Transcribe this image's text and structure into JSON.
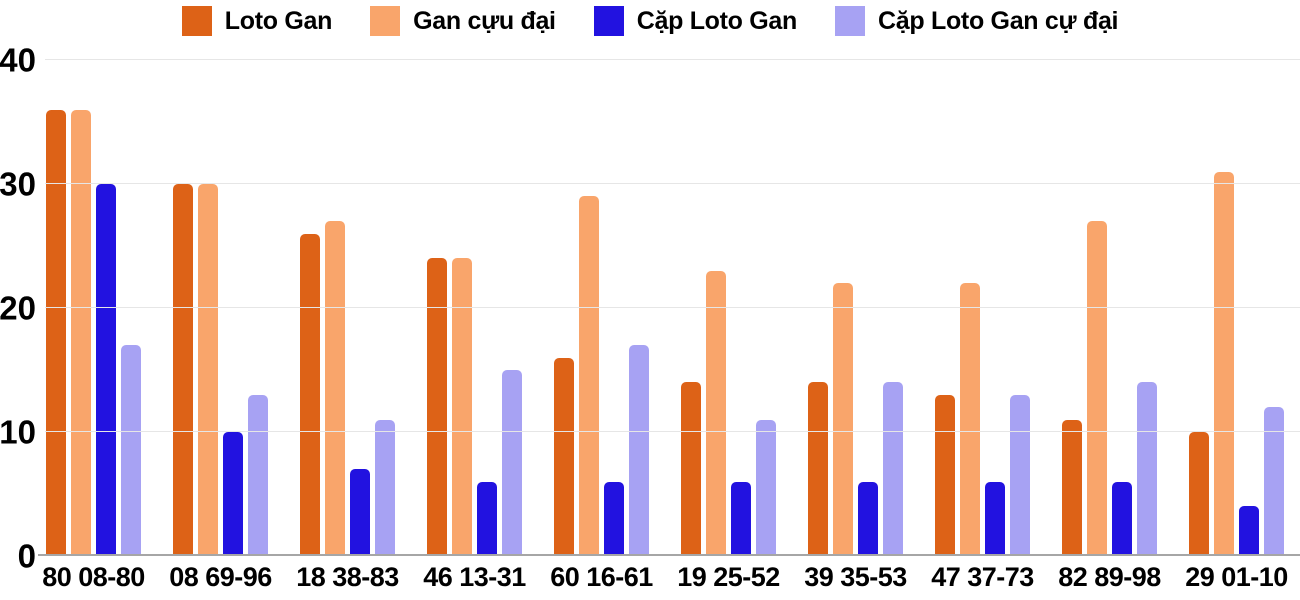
{
  "chart_data": {
    "type": "bar",
    "title": "",
    "xlabel": "",
    "ylabel": "",
    "categories": [
      "80 08-80",
      "08 69-96",
      "18 38-83",
      "46 13-31",
      "60 16-61",
      "19 25-52",
      "39 35-53",
      "47 37-73",
      "82 89-98",
      "29 01-10"
    ],
    "series": [
      {
        "name": "Loto Gan",
        "color": "#dd6217",
        "values": [
          36,
          30,
          26,
          24,
          16,
          14,
          14,
          13,
          11,
          10
        ]
      },
      {
        "name": "Gan cựu đại",
        "color": "#f9a56b",
        "values": [
          36,
          30,
          27,
          24,
          29,
          23,
          22,
          22,
          27,
          31
        ]
      },
      {
        "name": "Cặp Loto Gan",
        "color": "#2212e0",
        "values": [
          30,
          10,
          7,
          6,
          6,
          6,
          6,
          6,
          6,
          4
        ]
      },
      {
        "name": "Cặp Loto Gan cự đại",
        "color": "#a7a2f3",
        "values": [
          17,
          13,
          11,
          15,
          17,
          11,
          14,
          13,
          14,
          12
        ]
      }
    ],
    "ylim": [
      0,
      40
    ],
    "yticks": [
      0,
      10,
      20,
      30,
      40
    ],
    "grid": true,
    "legend_position": "top",
    "colors": {
      "grid": "#e6e6e6",
      "axis_line": "#a6a6a6",
      "text": "#000000",
      "background": "#ffffff"
    }
  }
}
